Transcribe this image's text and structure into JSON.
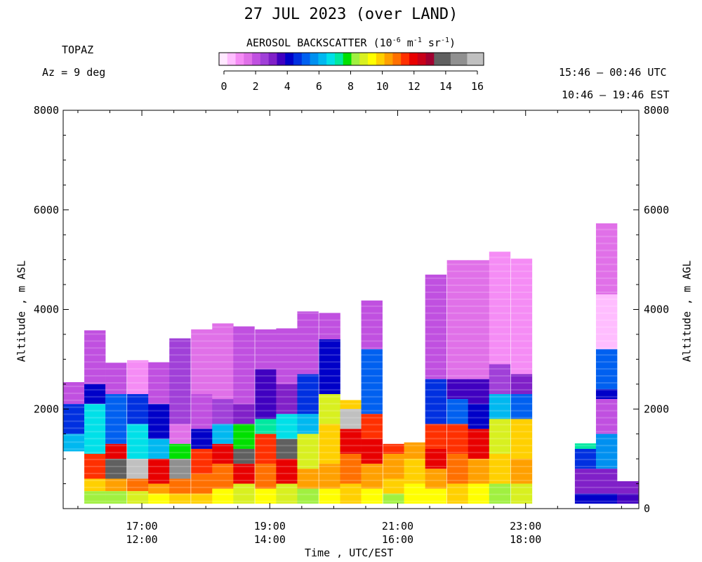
{
  "title": "27 JUL 2023 (over LAND)",
  "instrument": "TOPAZ",
  "azimuth": "Az =   9 deg",
  "time_range_utc": "15:46 – 00:46 UTC",
  "time_range_est": "10:46 – 19:46 EST",
  "colorbar": {
    "title_prefix": "AEROSOL BACKSCATTER (10",
    "title_exp1": "-6",
    "title_mid1": " m",
    "title_exp2": "-1",
    "title_mid2": " sr",
    "title_exp3": "-1",
    "title_suffix": ")",
    "tick_labels": [
      "0",
      "2",
      "4",
      "6",
      "8",
      "10",
      "12",
      "14",
      "16"
    ],
    "colors": [
      "#ffe8ff",
      "#ffbdff",
      "#f58cf5",
      "#e070e8",
      "#c050e0",
      "#a040d8",
      "#8020c8",
      "#4000c0",
      "#0000c8",
      "#0030e0",
      "#0060f0",
      "#0090f0",
      "#00b8f0",
      "#00e0e8",
      "#00e8a0",
      "#00e000",
      "#a0f040",
      "#d8f020",
      "#ffff00",
      "#ffd000",
      "#ffa000",
      "#ff7000",
      "#ff3000",
      "#e80000",
      "#c80018",
      "#a00030",
      "#606060",
      "#606060",
      "#909090",
      "#909090",
      "#c0c0c0",
      "#c0c0c0"
    ]
  },
  "chart_data": {
    "type": "heatmap",
    "xlabel": "Time , UTC/EST",
    "ylabel_left": "Altitude , m ASL",
    "ylabel_right": "Altitude , m AGL",
    "x_ticks_utc": [
      "17:00",
      "19:00",
      "21:00",
      "23:00"
    ],
    "x_ticks_est": [
      "12:00",
      "14:00",
      "16:00",
      "18:00"
    ],
    "y_ticks_left": [
      "8000",
      "6000",
      "4000",
      "2000"
    ],
    "y_ticks_right": [
      "8000",
      "6000",
      "4000",
      "2000",
      "0"
    ],
    "xlim_hours_utc": [
      15.77,
      24.77
    ],
    "ylim_m": [
      0,
      8000
    ],
    "profiles_hours_utc_and_colors": [
      {
        "t": 15.77,
        "top": 2540,
        "bottom": 1150,
        "layers": [
          [
            2540,
            "#c050e0"
          ],
          [
            2100,
            "#0030e0"
          ],
          [
            1500,
            "#00b8f0"
          ]
        ]
      },
      {
        "t": 16.1,
        "top": 3580,
        "bottom": 100,
        "layers": [
          [
            3580,
            "#c050e0"
          ],
          [
            2500,
            "#0000c8"
          ],
          [
            2100,
            "#00e0e8"
          ],
          [
            1100,
            "#ff3000"
          ],
          [
            600,
            "#ffd000"
          ],
          [
            350,
            "#a0f040"
          ]
        ]
      },
      {
        "t": 16.43,
        "top": 2930,
        "bottom": 100,
        "layers": [
          [
            2930,
            "#c050e0"
          ],
          [
            2300,
            "#0060f0"
          ],
          [
            1300,
            "#e80000"
          ],
          [
            1000,
            "#606060"
          ],
          [
            600,
            "#ffa000"
          ],
          [
            350,
            "#a0f040"
          ]
        ]
      },
      {
        "t": 16.77,
        "top": 2980,
        "bottom": 100,
        "layers": [
          [
            2980,
            "#f58cf5"
          ],
          [
            2300,
            "#0030e0"
          ],
          [
            1700,
            "#00e0e8"
          ],
          [
            1000,
            "#c0c0c0"
          ],
          [
            600,
            "#ff7000"
          ],
          [
            350,
            "#d8f020"
          ]
        ]
      },
      {
        "t": 17.1,
        "top": 2940,
        "bottom": 100,
        "layers": [
          [
            2940,
            "#c050e0"
          ],
          [
            2100,
            "#0000c8"
          ],
          [
            1400,
            "#00b8f0"
          ],
          [
            1000,
            "#e80000"
          ],
          [
            500,
            "#ffa000"
          ],
          [
            300,
            "#ffff00"
          ]
        ]
      },
      {
        "t": 17.43,
        "top": 3420,
        "bottom": 100,
        "layers": [
          [
            3420,
            "#a040d8"
          ],
          [
            1700,
            "#e070e8"
          ],
          [
            1300,
            "#00e000"
          ],
          [
            1000,
            "#909090"
          ],
          [
            600,
            "#ff7000"
          ],
          [
            300,
            "#ffd000"
          ]
        ]
      },
      {
        "t": 17.77,
        "top": 3600,
        "bottom": 100,
        "layers": [
          [
            3600,
            "#e070e8"
          ],
          [
            2300,
            "#c050e0"
          ],
          [
            1600,
            "#0000c8"
          ],
          [
            1200,
            "#ff3000"
          ],
          [
            700,
            "#ff7000"
          ],
          [
            300,
            "#ffd000"
          ]
        ]
      },
      {
        "t": 18.1,
        "top": 3720,
        "bottom": 100,
        "layers": [
          [
            3720,
            "#e070e8"
          ],
          [
            2200,
            "#a040d8"
          ],
          [
            1700,
            "#00b8f0"
          ],
          [
            1300,
            "#e80000"
          ],
          [
            900,
            "#ff7000"
          ],
          [
            400,
            "#ffff00"
          ]
        ]
      },
      {
        "t": 18.43,
        "top": 3660,
        "bottom": 100,
        "layers": [
          [
            3660,
            "#c050e0"
          ],
          [
            2100,
            "#8020c8"
          ],
          [
            1700,
            "#00e000"
          ],
          [
            1200,
            "#606060"
          ],
          [
            900,
            "#e80000"
          ],
          [
            500,
            "#d8f020"
          ]
        ]
      },
      {
        "t": 18.77,
        "top": 3600,
        "bottom": 100,
        "layers": [
          [
            3600,
            "#c050e0"
          ],
          [
            2800,
            "#4000c0"
          ],
          [
            1800,
            "#00e8a0"
          ],
          [
            1500,
            "#ff3000"
          ],
          [
            900,
            "#ff7000"
          ],
          [
            400,
            "#ffff00"
          ]
        ]
      },
      {
        "t": 19.1,
        "top": 3620,
        "bottom": 100,
        "layers": [
          [
            3620,
            "#c050e0"
          ],
          [
            2500,
            "#8020c8"
          ],
          [
            1900,
            "#00e0e8"
          ],
          [
            1400,
            "#606060"
          ],
          [
            1000,
            "#e80000"
          ],
          [
            500,
            "#d8f020"
          ]
        ]
      },
      {
        "t": 19.43,
        "top": 3960,
        "bottom": 100,
        "layers": [
          [
            3960,
            "#c050e0"
          ],
          [
            2700,
            "#0030e0"
          ],
          [
            1900,
            "#00b8f0"
          ],
          [
            1500,
            "#d8f020"
          ],
          [
            800,
            "#ffa000"
          ],
          [
            400,
            "#a0f040"
          ]
        ]
      },
      {
        "t": 19.77,
        "top": 3930,
        "bottom": 100,
        "layers": [
          [
            3930,
            "#c050e0"
          ],
          [
            3400,
            "#0000c8"
          ],
          [
            2300,
            "#d8f020"
          ],
          [
            1700,
            "#ffd000"
          ],
          [
            900,
            "#ffa000"
          ],
          [
            400,
            "#ffff00"
          ]
        ]
      },
      {
        "t": 20.1,
        "top": 2180,
        "bottom": 100,
        "layers": [
          [
            2180,
            "#ffd000"
          ],
          [
            2000,
            "#c0c0c0"
          ],
          [
            1600,
            "#e80000"
          ],
          [
            1100,
            "#ff7000"
          ],
          [
            500,
            "#ffd000"
          ]
        ]
      },
      {
        "t": 20.43,
        "top": 4180,
        "bottom": 100,
        "layers": [
          [
            4180,
            "#c050e0"
          ],
          [
            3200,
            "#0060f0"
          ],
          [
            1900,
            "#ff3000"
          ],
          [
            1400,
            "#e80000"
          ],
          [
            900,
            "#ffa000"
          ],
          [
            400,
            "#ffff00"
          ]
        ]
      },
      {
        "t": 20.77,
        "top": 1300,
        "bottom": 100,
        "layers": [
          [
            1300,
            "#ff3000"
          ],
          [
            1100,
            "#ffa000"
          ],
          [
            600,
            "#ffd000"
          ],
          [
            300,
            "#a0f040"
          ]
        ]
      },
      {
        "t": 21.1,
        "top": 1330,
        "bottom": 100,
        "layers": [
          [
            1330,
            "#ffa000"
          ],
          [
            1000,
            "#ffd000"
          ],
          [
            500,
            "#ffff00"
          ]
        ]
      },
      {
        "t": 21.43,
        "top": 4700,
        "bottom": 100,
        "layers": [
          [
            4700,
            "#c050e0"
          ],
          [
            2600,
            "#0030e0"
          ],
          [
            1700,
            "#ff3000"
          ],
          [
            1200,
            "#e80000"
          ],
          [
            800,
            "#ffa000"
          ],
          [
            400,
            "#ffff00"
          ]
        ]
      },
      {
        "t": 21.77,
        "top": 4990,
        "bottom": 100,
        "layers": [
          [
            4990,
            "#e070e8"
          ],
          [
            2600,
            "#4000c0"
          ],
          [
            2200,
            "#0060f0"
          ],
          [
            1700,
            "#ff3000"
          ],
          [
            1100,
            "#ff7000"
          ],
          [
            500,
            "#ffd000"
          ]
        ]
      },
      {
        "t": 22.1,
        "top": 4990,
        "bottom": 100,
        "layers": [
          [
            4990,
            "#e070e8"
          ],
          [
            2600,
            "#4000c0"
          ],
          [
            2100,
            "#0000c8"
          ],
          [
            1600,
            "#e80000"
          ],
          [
            1000,
            "#ffa000"
          ],
          [
            500,
            "#ffff00"
          ]
        ]
      },
      {
        "t": 22.43,
        "top": 5160,
        "bottom": 100,
        "layers": [
          [
            5160,
            "#f58cf5"
          ],
          [
            2900,
            "#a040d8"
          ],
          [
            2300,
            "#00b8f0"
          ],
          [
            1800,
            "#d8f020"
          ],
          [
            1100,
            "#ffd000"
          ],
          [
            500,
            "#a0f040"
          ]
        ]
      },
      {
        "t": 22.77,
        "top": 5020,
        "bottom": 100,
        "layers": [
          [
            5020,
            "#f58cf5"
          ],
          [
            2700,
            "#8020c8"
          ],
          [
            2300,
            "#0060f0"
          ],
          [
            1800,
            "#ffd000"
          ],
          [
            1000,
            "#ffa000"
          ],
          [
            500,
            "#d8f020"
          ]
        ]
      },
      {
        "t": 23.77,
        "top": 1310,
        "bottom": 100,
        "layers": [
          [
            1310,
            "#00e8a0"
          ],
          [
            1200,
            "#0030e0"
          ],
          [
            800,
            "#8020c8"
          ],
          [
            300,
            "#0000c8"
          ]
        ]
      },
      {
        "t": 24.1,
        "top": 5730,
        "bottom": 100,
        "layers": [
          [
            5730,
            "#e070e8"
          ],
          [
            4300,
            "#ffbdff"
          ],
          [
            3200,
            "#0060f0"
          ],
          [
            2400,
            "#0000c8"
          ],
          [
            2200,
            "#c050e0"
          ],
          [
            1500,
            "#0090f0"
          ],
          [
            800,
            "#8020c8"
          ],
          [
            300,
            "#0000c8"
          ]
        ]
      },
      {
        "t": 24.43,
        "top": 550,
        "bottom": 100,
        "layers": [
          [
            550,
            "#8020c8"
          ],
          [
            300,
            "#4000c0"
          ]
        ]
      }
    ]
  }
}
